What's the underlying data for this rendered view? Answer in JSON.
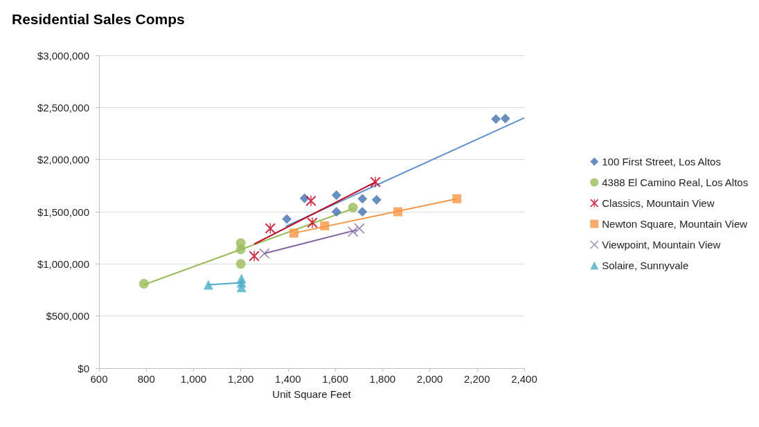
{
  "chart_data": {
    "type": "scatter",
    "title": "Residential Sales Comps",
    "xlabel": "Unit Square Feet",
    "xlim": [
      600,
      2400
    ],
    "xticks": [
      600,
      800,
      {
        "value": 1000,
        "label": "1,000"
      },
      {
        "value": 1200,
        "label": "1,200"
      },
      {
        "value": 1400,
        "label": "1,400"
      },
      {
        "value": 1600,
        "label": "1,600"
      },
      {
        "value": 1800,
        "label": "1,800"
      },
      {
        "value": 2000,
        "label": "2,000"
      },
      {
        "value": 2200,
        "label": "2,200"
      },
      {
        "value": 2400,
        "label": "2,400"
      }
    ],
    "ylim": [
      0,
      3000000
    ],
    "yticks": [
      {
        "value": 0,
        "label": "$0"
      },
      {
        "value": 500000,
        "label": "$500,000"
      },
      {
        "value": 1000000,
        "label": "$1,000,000"
      },
      {
        "value": 1500000,
        "label": "$1,500,000"
      },
      {
        "value": 2000000,
        "label": "$2,000,000"
      },
      {
        "value": 2500000,
        "label": "$2,500,000"
      },
      {
        "value": 3000000,
        "label": "$3,000,000"
      }
    ],
    "grid": "y",
    "legend": "right",
    "series": [
      {
        "name": "100 First Street, Los Altos",
        "color": "#4472b0",
        "marker": "diamond",
        "x": [
          1395,
          1470,
          1605,
          1605,
          1715,
          1715,
          1775,
          2280,
          2320
        ],
        "values": [
          1430000,
          1630000,
          1500000,
          1660000,
          1625000,
          1500000,
          1615000,
          2390000,
          2395000
        ]
      },
      {
        "name": "4388 El Camino Real, Los Altos",
        "color": "#9bbb59",
        "marker": "circle",
        "x": [
          790,
          1200,
          1200,
          1200,
          1675
        ],
        "values": [
          810000,
          1200000,
          1140000,
          1000000,
          1540000
        ]
      },
      {
        "name": "Classics, Mountain View",
        "color": "#c0001f",
        "marker": "star",
        "x": [
          1257,
          1325,
          1497,
          1503,
          1770
        ],
        "values": [
          1075000,
          1340000,
          1605000,
          1395000,
          1785000
        ]
      },
      {
        "name": "Newton Square, Mountain View",
        "color": "#f79646",
        "marker": "square",
        "x": [
          1425,
          1555,
          1865,
          2115
        ],
        "values": [
          1295000,
          1365000,
          1500000,
          1625000
        ]
      },
      {
        "name": "Viewpoint, Mountain View",
        "color": "#8064a2",
        "marker": "cross",
        "x": [
          1300,
          1675,
          1702
        ],
        "values": [
          1100000,
          1310000,
          1340000
        ]
      },
      {
        "name": "Solaire, Sunnyvale",
        "color": "#4bacc6",
        "marker": "triangle",
        "x": [
          1063,
          1203,
          1203,
          1203
        ],
        "values": [
          800000,
          860000,
          820000,
          775000
        ]
      },
      {
        "type": "line",
        "color": "#5b8fd0",
        "marker": "none",
        "x": [
          1390,
          2400
        ],
        "values": [
          1360000,
          2400000
        ]
      },
      {
        "type": "line",
        "color": "#9bbb59",
        "marker": "none",
        "x": [
          790,
          1675
        ],
        "values": [
          800000,
          1530000
        ]
      },
      {
        "type": "line",
        "color": "#c0001f",
        "marker": "none",
        "x": [
          1257,
          1770
        ],
        "values": [
          1190000,
          1785000
        ]
      },
      {
        "type": "line",
        "color": "#f79646",
        "marker": "none",
        "x": [
          1425,
          2115
        ],
        "values": [
          1295000,
          1625000
        ]
      },
      {
        "type": "line",
        "color": "#8064a2",
        "marker": "none",
        "x": [
          1300,
          1690
        ],
        "values": [
          1100000,
          1325000
        ]
      },
      {
        "type": "line",
        "color": "#4bacc6",
        "marker": "none",
        "x": [
          1063,
          1203
        ],
        "values": [
          800000,
          820000
        ]
      }
    ]
  }
}
